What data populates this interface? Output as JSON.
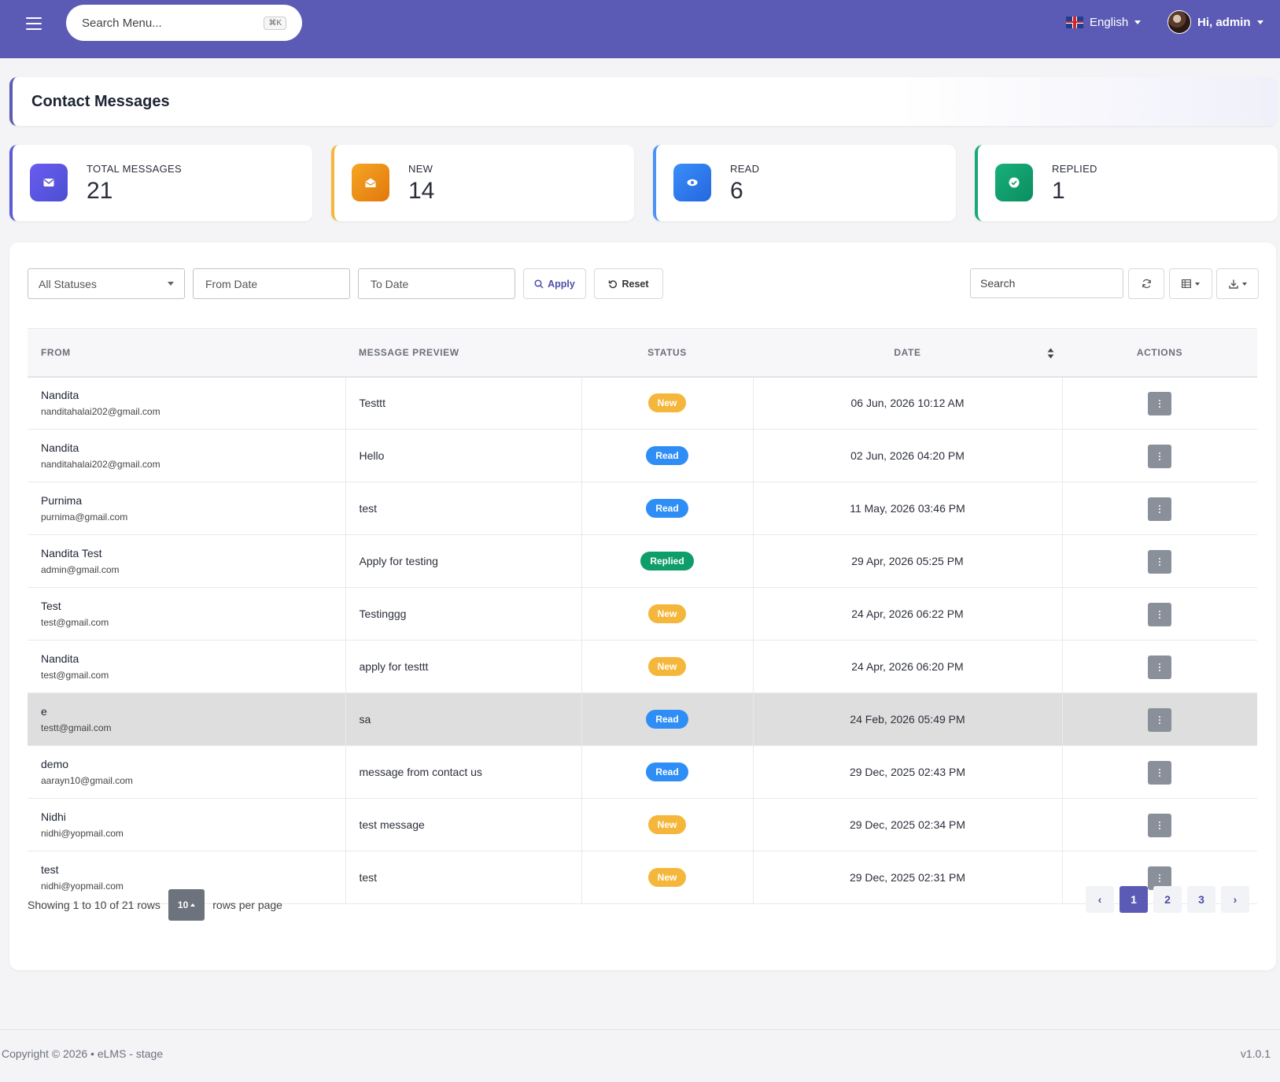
{
  "header": {
    "search_placeholder": "Search Menu...",
    "search_shortcut": "⌘K",
    "language": "English",
    "greeting": "Hi, admin"
  },
  "page": {
    "title": "Contact Messages"
  },
  "stats": [
    {
      "label": "TOTAL MESSAGES",
      "value": "21",
      "color": "#5b5bd6"
    },
    {
      "label": "NEW",
      "value": "14",
      "color": "#f0950e"
    },
    {
      "label": "READ",
      "value": "6",
      "color": "#2f7ef5"
    },
    {
      "label": "REPLIED",
      "value": "1",
      "color": "#0f9d6a"
    }
  ],
  "filters": {
    "status": "All Statuses",
    "from_date": "From Date",
    "to_date": "To Date",
    "apply": "Apply",
    "reset": "Reset",
    "search": "Search"
  },
  "table": {
    "columns": [
      "FROM",
      "MESSAGE PREVIEW",
      "STATUS",
      "DATE",
      "ACTIONS"
    ],
    "rows": [
      {
        "name": "Nandita",
        "email": "nanditahalai202@gmail.com",
        "preview": "Testtt",
        "status": "New",
        "date": "06 Jun, 2026 10:12 AM"
      },
      {
        "name": "Nandita",
        "email": "nanditahalai202@gmail.com",
        "preview": "Hello",
        "status": "Read",
        "date": "02 Jun, 2026 04:20 PM"
      },
      {
        "name": "Purnima",
        "email": "purnima@gmail.com",
        "preview": "test",
        "status": "Read",
        "date": "11 May, 2026 03:46 PM"
      },
      {
        "name": "Nandita Test",
        "email": "admin@gmail.com",
        "preview": "Apply for testing",
        "status": "Replied",
        "date": "29 Apr, 2026 05:25 PM"
      },
      {
        "name": "Test",
        "email": "test@gmail.com",
        "preview": "Testinggg",
        "status": "New",
        "date": "24 Apr, 2026 06:22 PM"
      },
      {
        "name": "Nandita",
        "email": "test@gmail.com",
        "preview": "apply for testtt",
        "status": "New",
        "date": "24 Apr, 2026 06:20 PM"
      },
      {
        "name": "e",
        "email": "testt@gmail.com",
        "preview": "sa",
        "status": "Read",
        "date": "24 Feb, 2026 05:49 PM"
      },
      {
        "name": "demo",
        "email": "aarayn10@gmail.com",
        "preview": "message from contact us",
        "status": "Read",
        "date": "29 Dec, 2025 02:43 PM"
      },
      {
        "name": "Nidhi",
        "email": "nidhi@yopmail.com",
        "preview": "test message",
        "status": "New",
        "date": "29 Dec, 2025 02:34 PM"
      },
      {
        "name": "test",
        "email": "nidhi@yopmail.com",
        "preview": "test",
        "status": "New",
        "date": "29 Dec, 2025 02:31 PM"
      }
    ]
  },
  "status_colors": {
    "New": "#f5b73b",
    "Read": "#2f8ef5",
    "Replied": "#0f9d6a"
  },
  "pagination": {
    "showing": "Showing 1 to 10 of 21 rows",
    "per_page": "10",
    "per_page_suffix": "rows per page",
    "prev": "‹",
    "next": "›",
    "pages": [
      "1",
      "2",
      "3"
    ]
  },
  "footer": {
    "copyright": "Copyright © 2026  •  eLMS - stage",
    "version": "v1.0.1"
  }
}
